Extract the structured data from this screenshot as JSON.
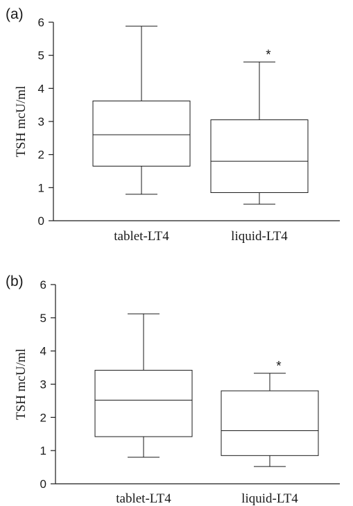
{
  "chart_data": [
    {
      "type": "box",
      "panel_label": "(a)",
      "ylabel": "TSH mcU/ml",
      "ylim": [
        0,
        6
      ],
      "yticks": [
        "0",
        "1",
        "2",
        "3",
        "4",
        "5",
        "6"
      ],
      "categories": [
        "tablet-LT4",
        "liquid-LT4"
      ],
      "boxes": [
        {
          "whisker_low": 0.8,
          "q1": 1.65,
          "median": 2.6,
          "q3": 3.62,
          "whisker_high": 5.88,
          "marker": ""
        },
        {
          "whisker_low": 0.5,
          "q1": 0.85,
          "median": 1.8,
          "q3": 3.05,
          "whisker_high": 4.8,
          "marker": "*"
        }
      ]
    },
    {
      "type": "box",
      "panel_label": "(b)",
      "ylabel": "TSH mcU/ml",
      "ylim": [
        0,
        6
      ],
      "yticks": [
        "0",
        "1",
        "2",
        "3",
        "4",
        "5",
        "6"
      ],
      "categories": [
        "tablet-LT4",
        "liquid-LT4"
      ],
      "boxes": [
        {
          "whisker_low": 0.8,
          "q1": 1.42,
          "median": 2.52,
          "q3": 3.42,
          "whisker_high": 5.12,
          "marker": ""
        },
        {
          "whisker_low": 0.52,
          "q1": 0.85,
          "median": 1.6,
          "q3": 2.8,
          "whisker_high": 3.33,
          "marker": "*"
        }
      ]
    }
  ]
}
